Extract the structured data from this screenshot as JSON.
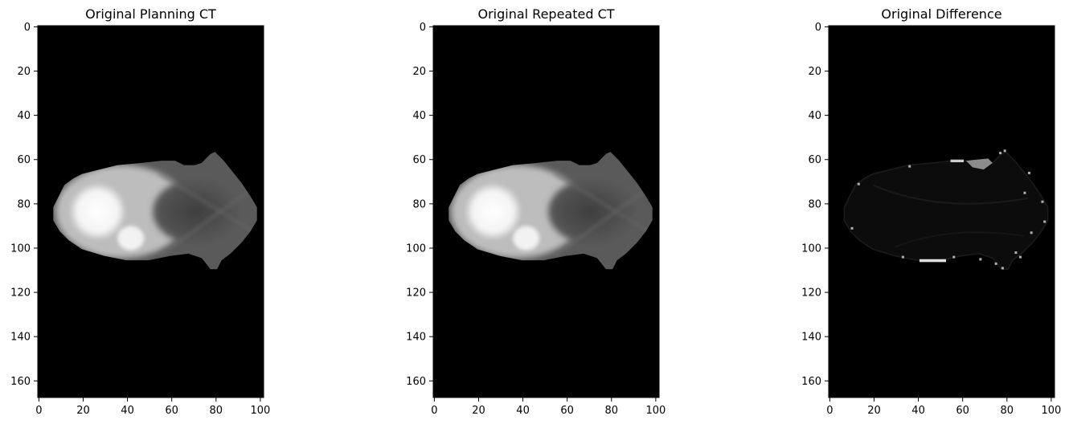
{
  "panels": [
    {
      "title": "Original Planning CT",
      "kind": "ct"
    },
    {
      "title": "Original Repeated CT",
      "kind": "ct"
    },
    {
      "title": "Original Difference",
      "kind": "diff"
    }
  ],
  "image_size": {
    "width": 102,
    "height": 168
  },
  "axes": {
    "xticks": [
      0,
      20,
      40,
      60,
      80,
      100
    ],
    "yticks": [
      0,
      20,
      40,
      60,
      80,
      100,
      120,
      140,
      160
    ]
  },
  "colors": {
    "background": "#000000",
    "frame": "#000000",
    "figure": "#ffffff"
  }
}
